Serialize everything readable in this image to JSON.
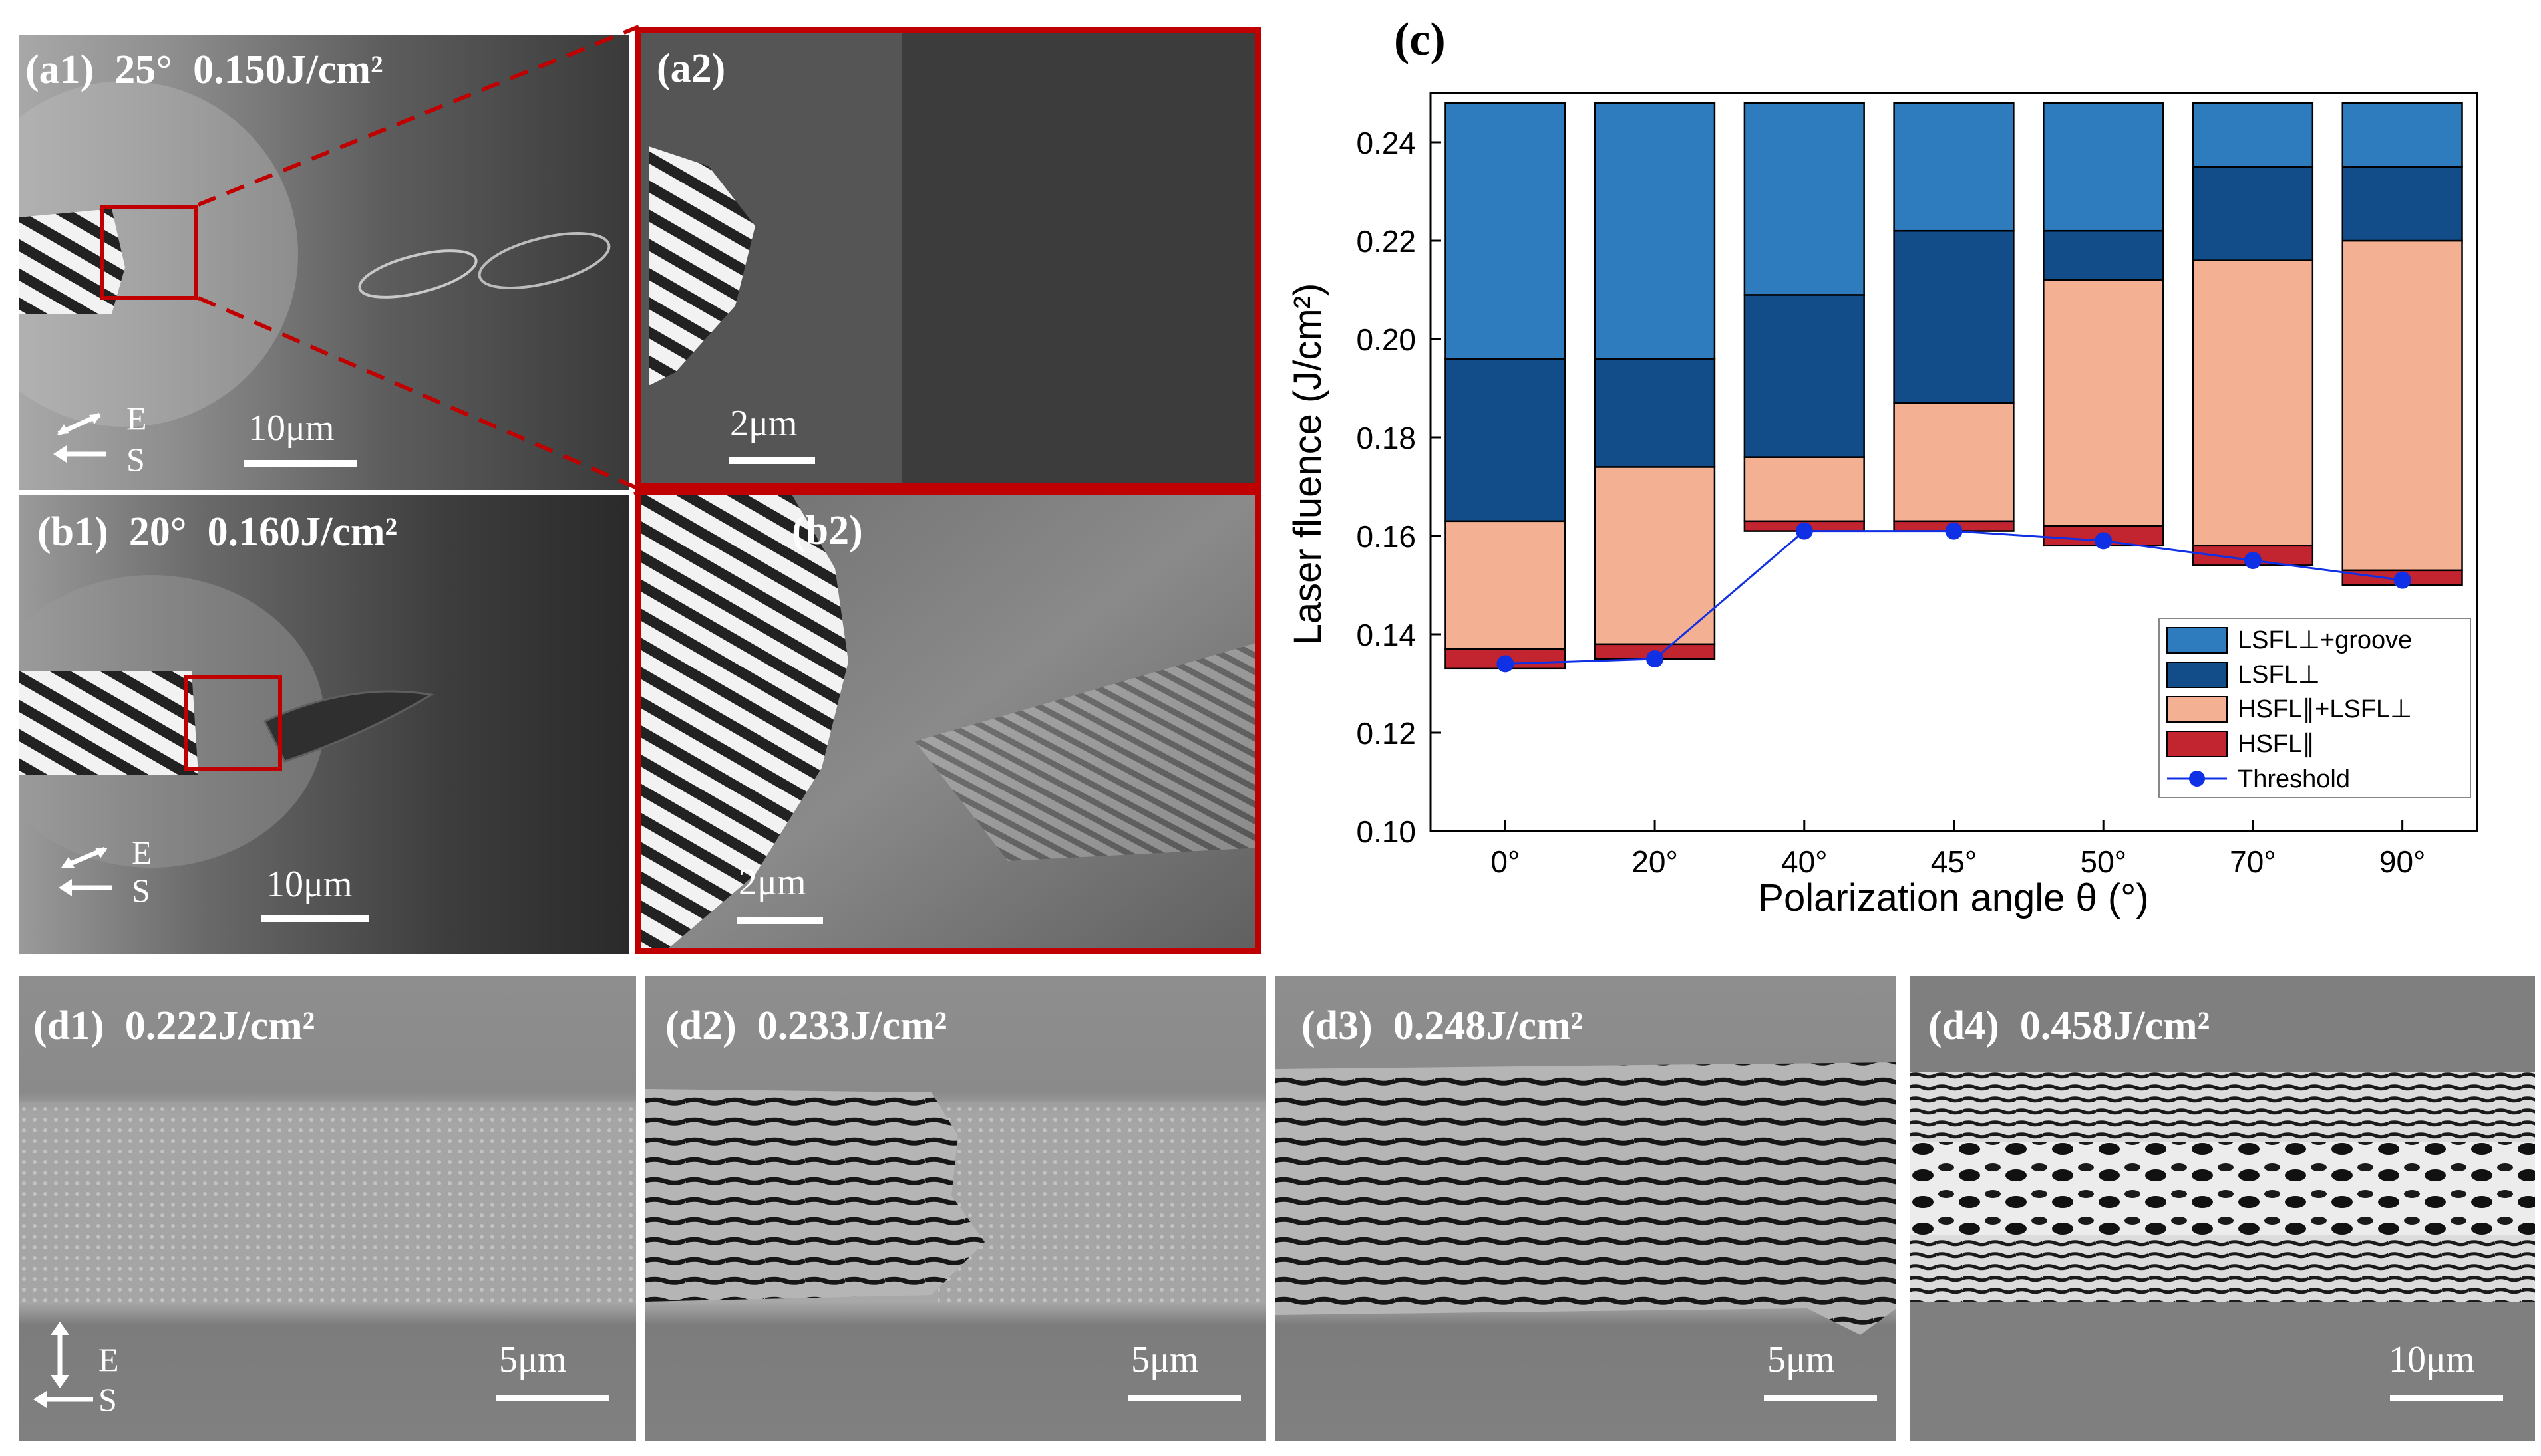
{
  "panels": {
    "a1": {
      "label": "(a1)  25°  0.150J/cm²",
      "scale": "10μm",
      "e": "E",
      "s": "S"
    },
    "a2": {
      "label": "(a2)",
      "scale": "2μm"
    },
    "b1": {
      "label": "(b1)  20°  0.160J/cm²",
      "scale": "10μm",
      "e": "E",
      "s": "S"
    },
    "b2": {
      "label": "(b2)",
      "scale": "2μm"
    },
    "d1": {
      "label": "(d1)  0.222J/cm²",
      "scale": "5μm",
      "e": "E",
      "s": "S"
    },
    "d2": {
      "label": "(d2)  0.233J/cm²",
      "scale": "5μm"
    },
    "d3": {
      "label": "(d3)  0.248J/cm²",
      "scale": "5μm"
    },
    "d4": {
      "label": "(d4)  0.458J/cm²",
      "scale": "10μm"
    }
  },
  "colors": {
    "lsfl_groove": "#2e7bbd",
    "lsfl": "#124d8a",
    "hsfl_lsfl": "#f4b093",
    "hsfl": "#c22430",
    "threshold": "#1030e6",
    "frame_red": "#c00000"
  },
  "chart_data": {
    "type": "bar",
    "panel_label": "(c)",
    "xlabel": "Polarization angle θ (°)",
    "ylabel": "Laser fluence (J/cm²)",
    "ylim": [
      0.1,
      0.25
    ],
    "yticks": [
      "0.10",
      "0.12",
      "0.14",
      "0.16",
      "0.18",
      "0.20",
      "0.22",
      "0.24"
    ],
    "categories": [
      "0°",
      "20°",
      "40°",
      "45°",
      "50°",
      "70°",
      "90°"
    ],
    "bar_base": 0.133,
    "series": [
      {
        "name": "HSFL∥",
        "color": "#c22430",
        "values": [
          0.137,
          0.138,
          0.163,
          0.163,
          0.162,
          0.158,
          0.153
        ]
      },
      {
        "name": "HSFL∥+LSFL⊥",
        "color": "#f4b093",
        "values": [
          0.163,
          0.174,
          0.176,
          0.187,
          0.212,
          0.216,
          0.22
        ]
      },
      {
        "name": "LSFL⊥",
        "color": "#124d8a",
        "values": [
          0.196,
          0.196,
          0.209,
          0.222,
          0.222,
          0.235,
          0.235
        ]
      },
      {
        "name": "LSFL⊥+groove",
        "color": "#2e7bbd",
        "values": [
          0.248,
          0.248,
          0.248,
          0.248,
          0.248,
          0.248,
          0.248
        ]
      }
    ],
    "bar_bottoms": [
      0.133,
      0.135,
      0.161,
      0.161,
      0.158,
      0.154,
      0.15
    ],
    "threshold": {
      "name": "Threshold",
      "values": [
        0.134,
        0.135,
        0.161,
        0.161,
        0.159,
        0.155,
        0.151
      ]
    },
    "legend": {
      "placement": "bottom-right",
      "entries": [
        "LSFL⊥+groove",
        "LSFL⊥",
        "HSFL∥+LSFL⊥",
        "HSFL∥",
        "Threshold"
      ]
    }
  }
}
